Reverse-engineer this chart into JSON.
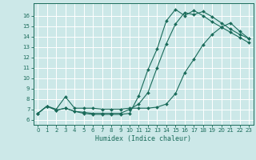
{
  "xlabel": "Humidex (Indice chaleur)",
  "bg_color": "#cce8e8",
  "grid_color": "#ffffff",
  "line_color": "#1a6b5a",
  "xlim": [
    -0.5,
    23.5
  ],
  "ylim": [
    5.5,
    17.2
  ],
  "xticks": [
    0,
    1,
    2,
    3,
    4,
    5,
    6,
    7,
    8,
    9,
    10,
    11,
    12,
    13,
    14,
    15,
    16,
    17,
    18,
    19,
    20,
    21,
    22,
    23
  ],
  "yticks": [
    6,
    7,
    8,
    9,
    10,
    11,
    12,
    13,
    14,
    15,
    16
  ],
  "line1_x": [
    0,
    1,
    2,
    3,
    4,
    5,
    6,
    7,
    8,
    9,
    10,
    11,
    12,
    13,
    14,
    15,
    16,
    17,
    18,
    19,
    20,
    21,
    22,
    23
  ],
  "line1_y": [
    6.6,
    7.3,
    6.9,
    7.1,
    6.8,
    6.7,
    6.6,
    6.6,
    6.6,
    6.6,
    7.0,
    7.5,
    8.6,
    11.0,
    13.3,
    15.2,
    16.3,
    16.1,
    16.4,
    15.9,
    15.3,
    14.7,
    14.2,
    13.8
  ],
  "line2_x": [
    0,
    1,
    2,
    3,
    4,
    5,
    6,
    7,
    8,
    9,
    10,
    11,
    12,
    13,
    14,
    15,
    16,
    17,
    18,
    19,
    20,
    21,
    22,
    23
  ],
  "line2_y": [
    6.6,
    7.3,
    6.9,
    7.1,
    6.8,
    6.6,
    6.5,
    6.5,
    6.5,
    6.5,
    6.6,
    8.3,
    10.8,
    12.8,
    15.5,
    16.6,
    16.0,
    16.5,
    16.0,
    15.4,
    14.9,
    14.4,
    13.9,
    13.4
  ],
  "line3_x": [
    0,
    1,
    2,
    3,
    4,
    5,
    6,
    7,
    8,
    9,
    10,
    11,
    12,
    13,
    14,
    15,
    16,
    17,
    18,
    19,
    20,
    21,
    22,
    23
  ],
  "line3_y": [
    6.6,
    7.3,
    7.0,
    8.2,
    7.1,
    7.1,
    7.1,
    7.0,
    7.0,
    7.0,
    7.1,
    7.1,
    7.1,
    7.2,
    7.5,
    8.5,
    10.5,
    11.8,
    13.2,
    14.2,
    14.9,
    15.3,
    14.5,
    13.8
  ],
  "xlabel_fontsize": 6,
  "tick_fontsize": 5,
  "marker_size": 2.0,
  "line_width": 0.8
}
